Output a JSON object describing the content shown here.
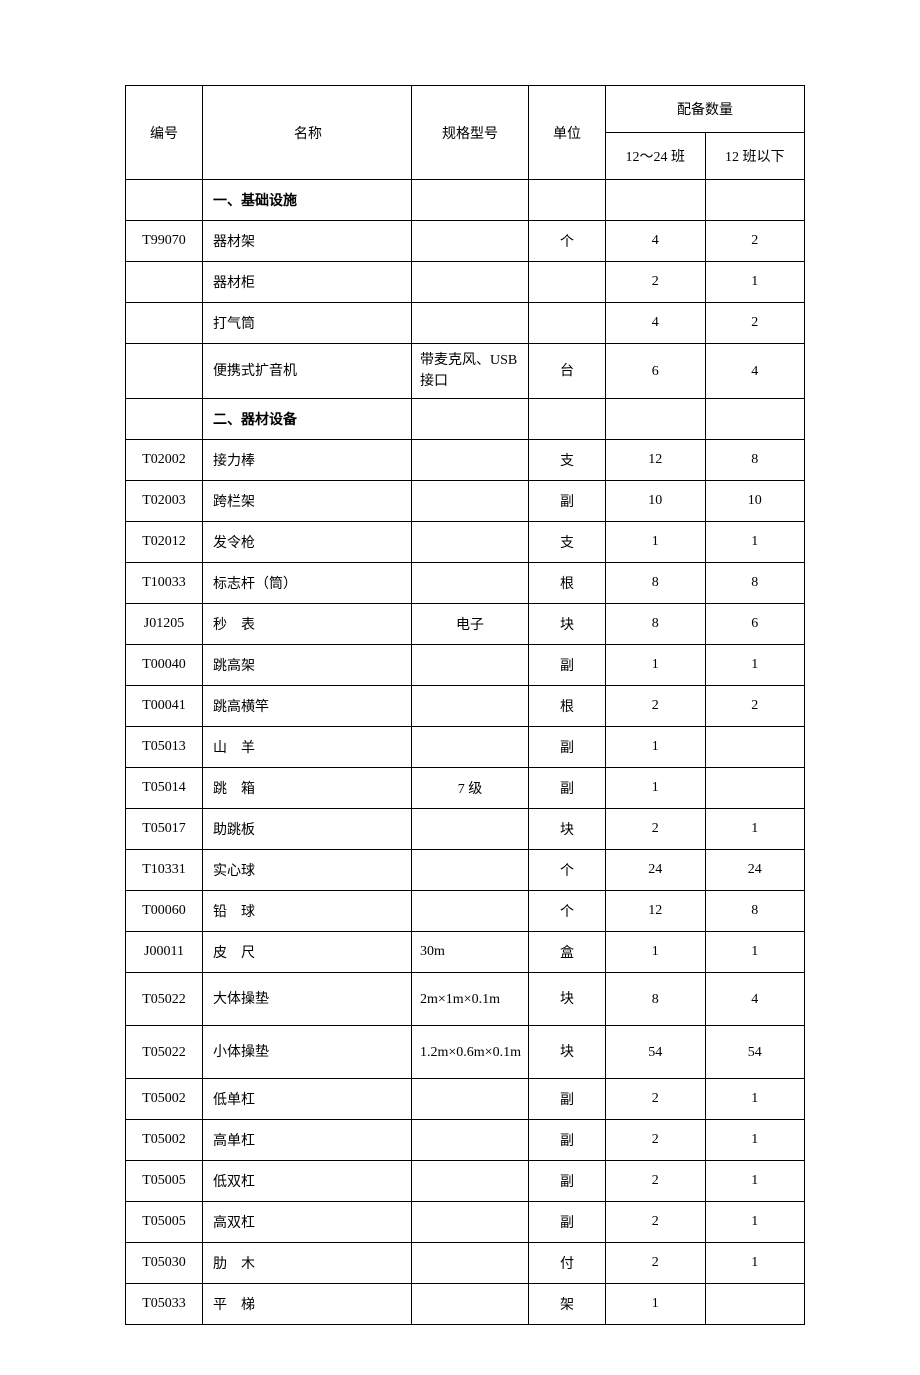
{
  "headers": {
    "id": "编号",
    "name": "名称",
    "spec": "规格型号",
    "unit": "单位",
    "qty_group": "配备数量",
    "qty1": "12～24 班",
    "qty2": "12 班以下"
  },
  "rows": [
    {
      "id": "",
      "name": "一、基础设施",
      "spec": "",
      "unit": "",
      "qty1": "",
      "qty2": "",
      "section": true
    },
    {
      "id": "T99070",
      "name": "器材架",
      "spec": "",
      "unit": "个",
      "qty1": "4",
      "qty2": "2"
    },
    {
      "id": "",
      "name": "器材柜",
      "spec": "",
      "unit": "",
      "qty1": "2",
      "qty2": "1"
    },
    {
      "id": "",
      "name": "打气筒",
      "spec": "",
      "unit": "",
      "qty1": "4",
      "qty2": "2"
    },
    {
      "id": "",
      "name": "便携式扩音机",
      "spec": "带麦克风、USB 接口",
      "unit": "台",
      "qty1": "6",
      "qty2": "4",
      "tall": true
    },
    {
      "id": "",
      "name": "二、器材设备",
      "spec": "",
      "unit": "",
      "qty1": "",
      "qty2": "",
      "section": true
    },
    {
      "id": "T02002",
      "name": "接力棒",
      "spec": "",
      "unit": "支",
      "qty1": "12",
      "qty2": "8"
    },
    {
      "id": "T02003",
      "name": "跨栏架",
      "spec": "",
      "unit": "副",
      "qty1": "10",
      "qty2": "10"
    },
    {
      "id": "T02012",
      "name": "发令枪",
      "spec": "",
      "unit": "支",
      "qty1": "1",
      "qty2": "1"
    },
    {
      "id": "T10033",
      "name": "标志杆（筒）",
      "spec": "",
      "unit": "根",
      "qty1": "8",
      "qty2": "8"
    },
    {
      "id": "J01205",
      "name": "秒　表",
      "spec": "电子",
      "unit": "块",
      "qty1": "8",
      "qty2": "6"
    },
    {
      "id": "T00040",
      "name": "跳高架",
      "spec": "",
      "unit": "副",
      "qty1": "1",
      "qty2": "1"
    },
    {
      "id": "T00041",
      "name": "跳高横竿",
      "spec": "",
      "unit": "根",
      "qty1": "2",
      "qty2": "2"
    },
    {
      "id": "T05013",
      "name": "山　羊",
      "spec": "",
      "unit": "副",
      "qty1": "1",
      "qty2": ""
    },
    {
      "id": "T05014",
      "name": "跳　箱",
      "spec": "7 级",
      "unit": "副",
      "qty1": "1",
      "qty2": ""
    },
    {
      "id": "T05017",
      "name": "助跳板",
      "spec": "",
      "unit": "块",
      "qty1": "2",
      "qty2": "1"
    },
    {
      "id": "T10331",
      "name": "实心球",
      "spec": "",
      "unit": "个",
      "qty1": "24",
      "qty2": "24"
    },
    {
      "id": "T00060",
      "name": "铅　球",
      "spec": "",
      "unit": "个",
      "qty1": "12",
      "qty2": "8"
    },
    {
      "id": "J00011",
      "name": "皮　尺",
      "spec": "30m",
      "unit": "盒",
      "qty1": "1",
      "qty2": "1"
    },
    {
      "id": "T05022",
      "name": "大体操垫",
      "spec": "2m×1m×0.1m",
      "unit": "块",
      "qty1": "8",
      "qty2": "4",
      "tall": true
    },
    {
      "id": "T05022",
      "name": "小体操垫",
      "spec": "1.2m×0.6m×0.1m",
      "unit": "块",
      "qty1": "54",
      "qty2": "54",
      "tall": true
    },
    {
      "id": "T05002",
      "name": "低单杠",
      "spec": "",
      "unit": "副",
      "qty1": "2",
      "qty2": "1"
    },
    {
      "id": "T05002",
      "name": "高单杠",
      "spec": "",
      "unit": "副",
      "qty1": "2",
      "qty2": "1"
    },
    {
      "id": "T05005",
      "name": "低双杠",
      "spec": "",
      "unit": "副",
      "qty1": "2",
      "qty2": "1"
    },
    {
      "id": "T05005",
      "name": "高双杠",
      "spec": "",
      "unit": "副",
      "qty1": "2",
      "qty2": "1"
    },
    {
      "id": "T05030",
      "name": "肋　木",
      "spec": "",
      "unit": "付",
      "qty1": "2",
      "qty2": "1"
    },
    {
      "id": "T05033",
      "name": "平　梯",
      "spec": "",
      "unit": "架",
      "qty1": "1",
      "qty2": ""
    }
  ]
}
